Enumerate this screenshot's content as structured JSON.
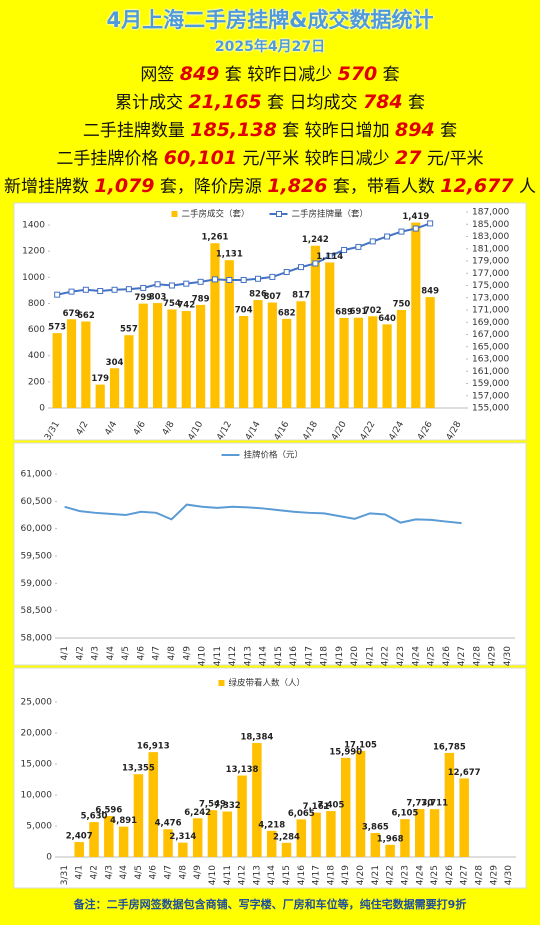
{
  "header": {
    "title": "4月上海二手房挂牌&成交数据统计",
    "date": "2025年4月27日"
  },
  "stats": [
    [
      {
        "text": "网签 "
      },
      {
        "highlight": "849"
      },
      {
        "text": " 套 较昨日减少 "
      },
      {
        "highlight": "570"
      },
      {
        "text": " 套"
      }
    ],
    [
      {
        "text": "累计成交 "
      },
      {
        "highlight": "21,165"
      },
      {
        "text": " 套 日均成交 "
      },
      {
        "highlight": "784"
      },
      {
        "text": " 套"
      }
    ],
    [
      {
        "text": "二手挂牌数量 "
      },
      {
        "highlight": "185,138"
      },
      {
        "text": " 套 较昨日增加 "
      },
      {
        "highlight": "894"
      },
      {
        "text": " 套"
      }
    ],
    [
      {
        "text": "二手挂牌价格 "
      },
      {
        "highlight": "60,101"
      },
      {
        "text": " 元/平米 较昨日减少 "
      },
      {
        "highlight": "27"
      },
      {
        "text": " 元/平米"
      }
    ],
    [
      {
        "text": "新增挂牌数 "
      },
      {
        "highlight": "1,079"
      },
      {
        "text": " 套，降价房源 "
      },
      {
        "highlight": "1,826"
      },
      {
        "text": " 套，带看人数 "
      },
      {
        "highlight": "12,677"
      },
      {
        "text": " 人"
      }
    ]
  ],
  "chart_data": [
    {
      "type": "bar",
      "categories": [
        "3/31",
        null,
        "4/2",
        null,
        "4/4",
        null,
        "4/6",
        null,
        "4/8",
        null,
        "4/10",
        null,
        "4/12",
        null,
        "4/14",
        null,
        "4/16",
        null,
        "4/18",
        null,
        "4/20",
        null,
        "4/22",
        null,
        "4/24",
        null,
        "4/26",
        null,
        "4/28"
      ],
      "series": [
        {
          "name": "二手房成交（套）",
          "color": "#ffc000",
          "values": [
            573,
            679,
            662,
            179,
            304,
            557,
            799,
            803,
            754,
            742,
            789,
            1261,
            1131,
            704,
            826,
            807,
            682,
            817,
            1242,
            1114,
            689,
            691,
            702,
            640,
            750,
            1419,
            849,
            null,
            null
          ],
          "value_labels": [
            "573",
            "679",
            "662",
            "179",
            "304",
            "557",
            "799",
            "803",
            "754",
            "742",
            "789",
            "1,261",
            "1,131",
            "704",
            "826",
            "807",
            "682",
            "817",
            "1,242",
            "1,114",
            "689",
            "691",
            "702",
            "640",
            "750",
            "1,419",
            "849",
            null,
            null
          ]
        },
        {
          "name": "二手房挂牌量（套）",
          "type": "line",
          "axis": "y2",
          "color": "#4472c4",
          "values": [
            173500,
            174000,
            174300,
            174100,
            174300,
            174400,
            174600,
            175200,
            175000,
            175300,
            175600,
            176000,
            175900,
            175900,
            176100,
            176400,
            177200,
            178000,
            178600,
            179800,
            180800,
            181300,
            182200,
            183000,
            183800,
            184300,
            185138,
            null,
            null
          ]
        }
      ],
      "ylim": [
        0,
        1500
      ],
      "yticks": [
        0,
        200,
        400,
        600,
        800,
        1000,
        1200,
        1400
      ],
      "y2lim": [
        155000,
        187000
      ],
      "y2ticks": [
        {
          "value": 155000,
          "label": "155,000"
        },
        {
          "value": 157000,
          "label": "157,000"
        },
        {
          "value": 159000,
          "label": "159,000"
        },
        {
          "value": 161000,
          "label": "161,000"
        },
        {
          "value": 163000,
          "label": "163,000"
        },
        {
          "value": 165000,
          "label": "165,000"
        },
        {
          "value": 167000,
          "label": "167,000"
        },
        {
          "value": 169000,
          "label": "169,000"
        },
        {
          "value": 171000,
          "label": "171,000"
        },
        {
          "value": 173000,
          "label": "173,000"
        },
        {
          "value": 175000,
          "label": "175,000"
        },
        {
          "value": 177000,
          "label": "177,000"
        },
        {
          "value": 179000,
          "label": "179,000"
        },
        {
          "value": 181000,
          "label": "181,000"
        },
        {
          "value": 183000,
          "label": "183,000"
        },
        {
          "value": 185000,
          "label": "185,000"
        },
        {
          "value": 187000,
          "label": "187,000"
        }
      ],
      "grid": false,
      "legend": "top"
    },
    {
      "type": "line",
      "categories": [
        "4/1",
        "4/2",
        "4/3",
        "4/4",
        "4/5",
        "4/6",
        "4/7",
        "4/8",
        "4/9",
        "4/10",
        "4/11",
        "4/12",
        "4/13",
        "4/14",
        "4/15",
        "4/16",
        "4/17",
        "4/18",
        "4/19",
        "4/20",
        "4/21",
        "4/22",
        "4/23",
        "4/24",
        "4/25",
        "4/26",
        "4/27",
        "4/28",
        "4/29",
        "4/30"
      ],
      "series": [
        {
          "name": "挂牌价格（元）",
          "color": "#5b9bd5",
          "values": [
            60400,
            60320,
            60290,
            60270,
            60250,
            60310,
            60290,
            60170,
            60440,
            60400,
            60380,
            60400,
            60390,
            60370,
            60340,
            60310,
            60290,
            60280,
            60230,
            60180,
            60280,
            60260,
            60110,
            60170,
            60160,
            60130,
            60101,
            null,
            null,
            null
          ]
        }
      ],
      "ylim": [
        58000,
        61000
      ],
      "yticks": [
        {
          "value": 58000,
          "label": "58,000"
        },
        {
          "value": 58500,
          "label": "58,500"
        },
        {
          "value": 59000,
          "label": "59,000"
        },
        {
          "value": 59500,
          "label": "59,500"
        },
        {
          "value": 60000,
          "label": "60,000"
        },
        {
          "value": 60500,
          "label": "60,500"
        },
        {
          "value": 61000,
          "label": "61,000"
        }
      ],
      "grid": false,
      "legend": "top"
    },
    {
      "type": "bar",
      "categories": [
        "3/31",
        "4/1",
        "4/2",
        "4/3",
        "4/4",
        "4/5",
        "4/6",
        "4/7",
        "4/8",
        "4/9",
        "4/10",
        "4/11",
        "4/12",
        "4/13",
        "4/14",
        "4/15",
        "4/16",
        "4/17",
        "4/18",
        "4/19",
        "4/20",
        "4/21",
        "4/22",
        "4/23",
        "4/24",
        "4/25",
        "4/26",
        "4/27",
        "4/28",
        "4/29",
        "4/30"
      ],
      "series": [
        {
          "name": "绿皮带看人数（人）",
          "color": "#ffc000",
          "values": [
            null,
            2407,
            5630,
            6596,
            4891,
            13355,
            16913,
            4476,
            2314,
            6242,
            7549,
            7332,
            13138,
            18384,
            4218,
            2284,
            6065,
            7161,
            7405,
            15990,
            17105,
            3865,
            1968,
            6105,
            7730,
            7711,
            16785,
            12677,
            null,
            null,
            null
          ],
          "value_labels": [
            null,
            "2,407",
            "5,630",
            "6,596",
            "4,891",
            "13,355",
            "16,913",
            "4,476",
            "2,314",
            "6,242",
            "7,549",
            "7,332",
            "13,138",
            "18,384",
            "4,218",
            "2,284",
            "6,065",
            "7,161",
            "7,405",
            "15,990",
            "17,105",
            "3,865",
            "1,968",
            "6,105",
            "7,730",
            "7,711",
            "16,785",
            "12,677",
            null,
            null,
            null
          ]
        }
      ],
      "ylim": [
        0,
        25000
      ],
      "yticks": [
        {
          "value": 0,
          "label": "0"
        },
        {
          "value": 5000,
          "label": "5,000"
        },
        {
          "value": 10000,
          "label": "10,000"
        },
        {
          "value": 15000,
          "label": "15,000"
        },
        {
          "value": 20000,
          "label": "20,000"
        },
        {
          "value": 25000,
          "label": "25,000"
        }
      ],
      "grid": false,
      "legend": "top"
    }
  ],
  "note": "备注：二手房网签数据包含商铺、写字楼、厂房和车位等，纯住宅数据需要打9折"
}
